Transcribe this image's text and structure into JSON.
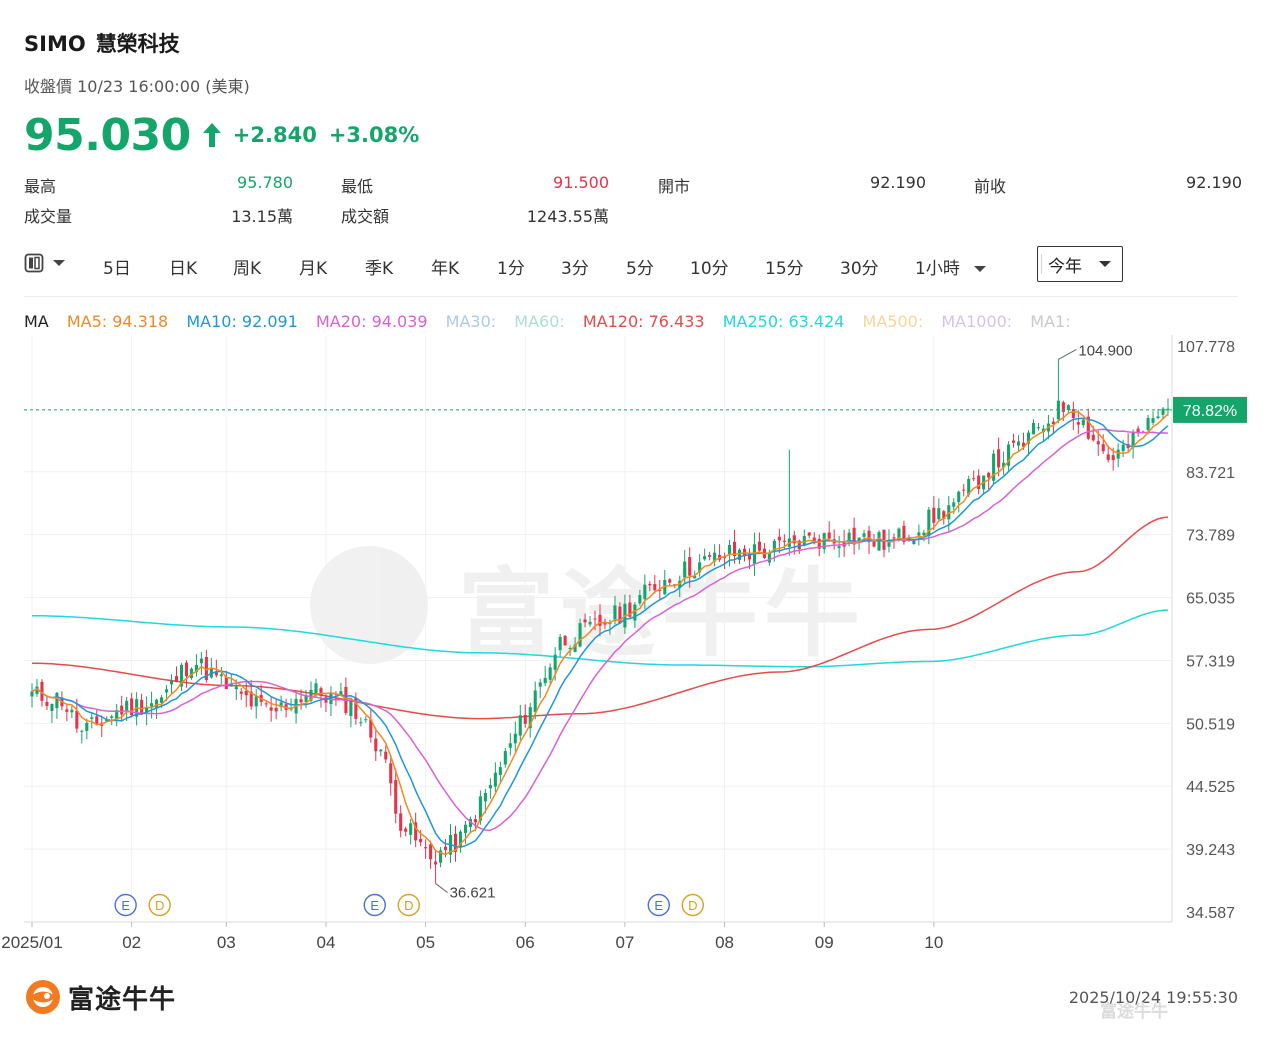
{
  "header": {
    "symbol": "SIMO",
    "name": "慧榮科技",
    "subtitle": "收盤價 10/23 16:00:00 (美東)",
    "price": "95.030",
    "change": "+2.840",
    "change_pct": "+3.08%",
    "up_color": "#14a56b",
    "down_color": "#e5334b"
  },
  "stats": [
    {
      "label": "最高",
      "value": "95.780",
      "value_color": "#14a56b"
    },
    {
      "label": "最低",
      "value": "91.500",
      "value_color": "#e5334b"
    },
    {
      "label": "開市",
      "value": "92.190",
      "value_color": "#333333"
    },
    {
      "label": "前收",
      "value": "92.190",
      "value_color": "#333333"
    },
    {
      "label": "成交量",
      "value": "13.15萬",
      "value_color": "#333333"
    },
    {
      "label": "成交額",
      "value": "1243.55萬",
      "value_color": "#333333"
    }
  ],
  "toolbar": {
    "chart_type_icon": "candlestick-icon",
    "periods": [
      "5日",
      "日K",
      "周K",
      "月K",
      "季K",
      "年K",
      "1分",
      "3分",
      "5分",
      "10分",
      "15分",
      "30分",
      "1小時"
    ],
    "selected_range": "今年"
  },
  "ma_legend": {
    "label": "MA",
    "items": [
      {
        "text": "MA5: 94.318",
        "color": "#f08a24"
      },
      {
        "text": "MA10: 92.091",
        "color": "#1e97d8"
      },
      {
        "text": "MA20: 94.039",
        "color": "#d961d4"
      },
      {
        "text": "MA30:",
        "color": "#a9cbea"
      },
      {
        "text": "MA60:",
        "color": "#abe2cf"
      },
      {
        "text": "MA120: 76.433",
        "color": "#e84a4a"
      },
      {
        "text": "MA250: 63.424",
        "color": "#1ed9dd"
      },
      {
        "text": "MA500:",
        "color": "#f6d69a"
      },
      {
        "text": "MA1000:",
        "color": "#d6c0f0"
      },
      {
        "text": "MA1:",
        "color": "#c9c9c9"
      }
    ]
  },
  "chart_data": {
    "type": "candlestick",
    "y_ticks": [
      "107.778",
      "83.721",
      "73.789",
      "65.035",
      "57.319",
      "50.519",
      "44.525",
      "39.243",
      "34.587"
    ],
    "y_tick_values": [
      107.778,
      83.721,
      73.789,
      65.035,
      57.319,
      50.519,
      44.525,
      39.243,
      34.587
    ],
    "y_scale": "log",
    "x_ticks": [
      "2025/01",
      "02",
      "03",
      "04",
      "05",
      "06",
      "07",
      "08",
      "09",
      "10"
    ],
    "current_label": "78.82%",
    "current_value": 94.8,
    "max_label": "104.900",
    "max_value": 104.9,
    "min_label": "36.621",
    "min_value": 36.621,
    "events": [
      {
        "month": "02",
        "day_fraction": 0.0,
        "markers": [
          "E",
          "D"
        ]
      },
      {
        "month": "04",
        "day_fraction": 0.55,
        "markers": [
          "E",
          "D"
        ]
      },
      {
        "month": "07",
        "day_fraction": 0.4,
        "markers": [
          "E",
          "D"
        ]
      }
    ],
    "ohlc_anchor_closes": [
      [
        0,
        53.5
      ],
      [
        6,
        53.0
      ],
      [
        10,
        49.5
      ],
      [
        18,
        52.0
      ],
      [
        26,
        53.0
      ],
      [
        32,
        57.5
      ],
      [
        40,
        54.0
      ],
      [
        48,
        51.5
      ],
      [
        56,
        54.0
      ],
      [
        64,
        52.5
      ],
      [
        70,
        48.0
      ],
      [
        74,
        41.5
      ],
      [
        80,
        38.5
      ],
      [
        86,
        40.0
      ],
      [
        92,
        44.5
      ],
      [
        100,
        52.5
      ],
      [
        106,
        59.5
      ],
      [
        112,
        61.0
      ],
      [
        118,
        63.0
      ],
      [
        126,
        67.0
      ],
      [
        132,
        69.0
      ],
      [
        140,
        71.0
      ],
      [
        148,
        71.5
      ],
      [
        156,
        73.0
      ],
      [
        164,
        73.5
      ],
      [
        172,
        72.5
      ],
      [
        178,
        75.0
      ],
      [
        186,
        79.0
      ],
      [
        192,
        84.5
      ],
      [
        198,
        88.0
      ],
      [
        204,
        93.0
      ],
      [
        208,
        96.5
      ],
      [
        212,
        91.0
      ],
      [
        216,
        86.0
      ],
      [
        220,
        88.0
      ],
      [
        224,
        92.0
      ],
      [
        228,
        95.03
      ]
    ],
    "ma5_color": "#f08a24",
    "ma10_color": "#1e97d8",
    "ma20_color": "#d961d4",
    "ma120_points": [
      [
        0,
        57.0
      ],
      [
        40,
        54.5
      ],
      [
        90,
        51.0
      ],
      [
        110,
        51.5
      ],
      [
        150,
        56.0
      ],
      [
        180,
        61.0
      ],
      [
        210,
        68.5
      ],
      [
        228,
        76.43
      ]
    ],
    "ma120_color": "#e84a4a",
    "ma250_points": [
      [
        0,
        62.7
      ],
      [
        40,
        61.3
      ],
      [
        90,
        58.2
      ],
      [
        130,
        56.8
      ],
      [
        155,
        56.6
      ],
      [
        180,
        57.2
      ],
      [
        210,
        60.3
      ],
      [
        228,
        63.42
      ]
    ],
    "ma250_color": "#1ed9dd"
  },
  "footer": {
    "brand": "富途牛牛",
    "timestamp": "2025/10/24 19:55:30",
    "watermark": "富途牛牛"
  }
}
